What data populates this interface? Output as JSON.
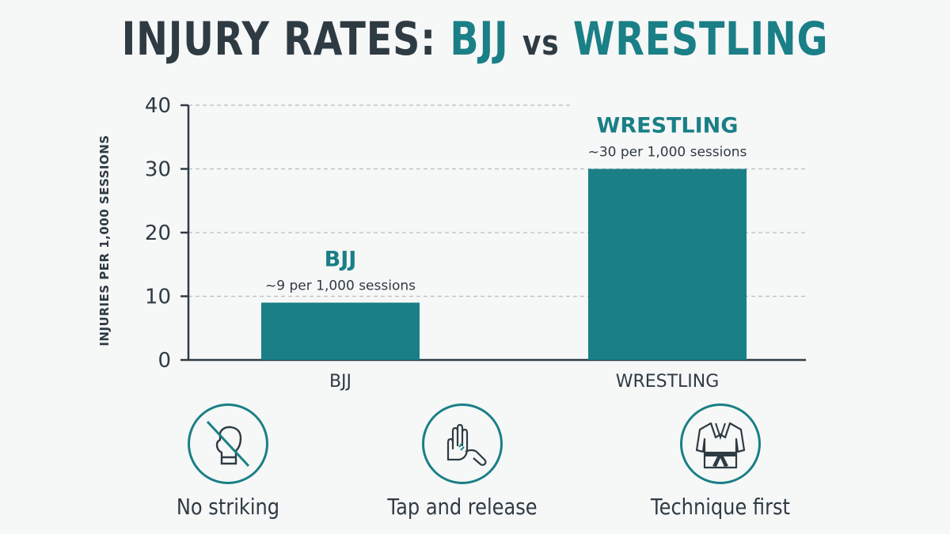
{
  "title": {
    "part1": "INJURY RATES:",
    "part2": "BJJ",
    "part3": "vs",
    "part4": "WRESTLING"
  },
  "colors": {
    "bar": "#1a7f86",
    "accent": "#1a7f86",
    "text": "#2f3b43",
    "grid": "#b9bdbf"
  },
  "chart_data": {
    "type": "bar",
    "title": "INJURY RATES: BJJ vs WRESTLING",
    "ylabel": "INJURIES PER 1,000 SESSIONS",
    "xlabel": "",
    "categories": [
      "BJJ",
      "WRESTLING"
    ],
    "values": [
      9,
      30
    ],
    "ylim": [
      0,
      40
    ],
    "yticks": [
      0,
      10,
      20,
      30,
      40
    ],
    "grid": true,
    "annotations": [
      {
        "category": "BJJ",
        "heading": "BJJ",
        "text": "~9 per 1,000 sessions"
      },
      {
        "category": "WRESTLING",
        "heading": "WRESTLING",
        "text": "~30 per 1,000 sessions"
      }
    ]
  },
  "features": [
    {
      "icon": "no-striking-icon",
      "label": "No striking"
    },
    {
      "icon": "tap-hand-icon",
      "label": "Tap and release"
    },
    {
      "icon": "gi-belt-icon",
      "label": "Technique first"
    }
  ]
}
